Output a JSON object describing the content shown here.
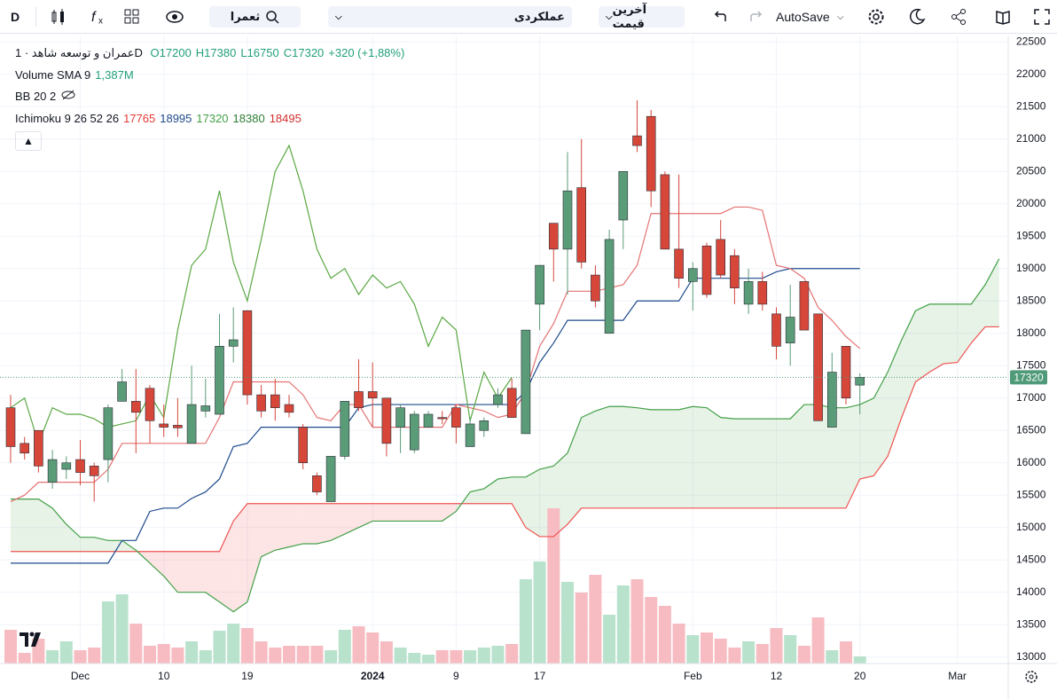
{
  "toolbar": {
    "interval": "D",
    "symbol_search": "ثعمرا",
    "indicators": "عملکردی",
    "price_type": "آخرین قیمت",
    "autosave": "AutoSave"
  },
  "chart_data": {
    "type": "candlestick",
    "title": "عمران و توسعه شاهد · 1D",
    "ohlc_text": [
      "O17200",
      "H17380",
      "L16750",
      "C17320",
      "+320 (+1,88%)"
    ],
    "ohlc_color": "#22a07a",
    "indicators": [
      {
        "name": "Volume SMA 9",
        "values": [
          "1,387M"
        ],
        "colors": [
          "#22a07a"
        ]
      },
      {
        "name": "BB 20 2",
        "values": [],
        "colors": []
      },
      {
        "name": "Ichimoku 9 26 52 26",
        "values": [
          "17765",
          "18995",
          "17320",
          "18380",
          "18495"
        ],
        "colors": [
          "#e53935",
          "#1e4a8c",
          "#43a047",
          "#2e7d32",
          "#d32f2f"
        ]
      }
    ],
    "up_color": "#5a9b78",
    "down_color": "#d6473a",
    "volume_up_color": "#b9e2cc",
    "volume_down_color": "#f7bcc2",
    "open": [
      16850,
      16300,
      16500,
      15700,
      15900,
      16050,
      15950,
      16050,
      16950,
      16950,
      17150,
      16600,
      16580,
      16300,
      16800,
      16750,
      17800,
      18350,
      17050,
      17050,
      16900,
      16550,
      15800,
      15400,
      16100,
      17100,
      17100,
      17000,
      16550,
      16200,
      16550,
      16700,
      16850,
      16250,
      16500,
      16900,
      17150,
      16450,
      18450,
      19700,
      19300,
      20250,
      18900,
      18000,
      19750,
      21050,
      21350,
      20450,
      19300,
      18800,
      19350,
      19450,
      19200,
      18450,
      18800,
      18300,
      17850,
      18800,
      18300,
      16550,
      17800,
      17200
    ],
    "high": [
      17050,
      16400,
      16500,
      16200,
      16100,
      16350,
      16000,
      16900,
      17450,
      17450,
      17200,
      16900,
      17000,
      17500,
      17300,
      18300,
      18400,
      18350,
      17200,
      17300,
      17050,
      16600,
      15850,
      16100,
      16950,
      17600,
      17550,
      17000,
      16900,
      16800,
      16800,
      16800,
      16900,
      16700,
      16700,
      17150,
      17300,
      18050,
      19050,
      19700,
      20800,
      21000,
      19050,
      19600,
      20500,
      21600,
      21450,
      20500,
      20450,
      19100,
      19400,
      19750,
      19300,
      19000,
      18950,
      18400,
      18750,
      18800,
      18300,
      17700,
      17800,
      17380
    ],
    "low": [
      16000,
      16050,
      15850,
      15600,
      15750,
      15650,
      15400,
      15700,
      16950,
      16150,
      16300,
      16400,
      16400,
      16300,
      16700,
      16750,
      17550,
      16900,
      16700,
      16650,
      16700,
      15900,
      15500,
      15400,
      16050,
      16800,
      16550,
      16100,
      16150,
      16150,
      16550,
      16600,
      16300,
      16250,
      16400,
      16850,
      16700,
      16450,
      18050,
      18800,
      18600,
      19000,
      18400,
      18000,
      19300,
      20800,
      19950,
      19300,
      18700,
      18350,
      18550,
      18850,
      18450,
      18300,
      18350,
      17600,
      17500,
      18050,
      16650,
      16550,
      16900,
      16750
    ],
    "close": [
      16250,
      16150,
      15950,
      16050,
      16000,
      15850,
      15800,
      16850,
      17250,
      16780,
      16650,
      16550,
      16540,
      16900,
      16880,
      17800,
      17900,
      17050,
      16800,
      16850,
      16780,
      16000,
      15550,
      16100,
      16950,
      16850,
      17000,
      16300,
      16850,
      16750,
      16750,
      16680,
      16550,
      16600,
      16650,
      17050,
      16700,
      18050,
      19050,
      19300,
      20200,
      19100,
      18500,
      19450,
      20500,
      20900,
      20200,
      19300,
      18850,
      19000,
      18600,
      18900,
      18700,
      18800,
      18450,
      17800,
      18250,
      18050,
      16650,
      17400,
      17000,
      17320
    ],
    "volume": [
      1.9,
      0.6,
      1.4,
      0.75,
      1.25,
      0.75,
      0.9,
      3.5,
      3.9,
      2.25,
      1.0,
      1.1,
      0.9,
      1.25,
      0.75,
      1.85,
      2.25,
      2.0,
      1.25,
      0.9,
      1.0,
      1.0,
      1.0,
      0.75,
      1.9,
      2.1,
      1.75,
      1.25,
      0.9,
      0.6,
      0.5,
      0.75,
      0.75,
      0.75,
      0.9,
      1.0,
      1.1,
      4.75,
      5.75,
      8.75,
      4.6,
      4.0,
      5.0,
      2.75,
      4.4,
      4.75,
      3.75,
      3.25,
      2.25,
      1.6,
      1.75,
      1.4,
      0.9,
      1.25,
      1.1,
      2.0,
      1.6,
      1.0,
      2.6,
      0.75,
      1.25,
      0.4
    ],
    "ichimoku": {
      "conversion": {
        "color": "#e57373",
        "values": [
          15400,
          15500,
          15700,
          15700,
          15700,
          15700,
          15700,
          15900,
          16300,
          16300,
          16300,
          16300,
          16300,
          16300,
          16300,
          16700,
          17250,
          17250,
          17250,
          17250,
          17250,
          17050,
          16700,
          16650,
          16900,
          16900,
          16550,
          16550,
          16550,
          16550,
          16550,
          16550,
          16900,
          16850,
          16800,
          16700,
          16750,
          17100,
          17800,
          18150,
          18650,
          18650,
          18650,
          18700,
          18750,
          19050,
          19850,
          19850,
          19850,
          19850,
          19850,
          19850,
          19950,
          19950,
          19900,
          19050,
          19000,
          18850,
          18400,
          18200,
          17950,
          17765
        ]
      },
      "base": {
        "color": "#1e4a8c",
        "values": [
          14450,
          14450,
          14450,
          14450,
          14450,
          14450,
          14450,
          14450,
          14800,
          14800,
          15250,
          15300,
          15300,
          15450,
          15550,
          15750,
          16250,
          16300,
          16550,
          16550,
          16550,
          16550,
          16550,
          16550,
          16550,
          16850,
          16900,
          16900,
          16900,
          16900,
          16900,
          16900,
          16900,
          16900,
          16900,
          16900,
          16900,
          17100,
          17550,
          17850,
          18200,
          18200,
          18200,
          18200,
          18200,
          18500,
          18500,
          18500,
          18500,
          18850,
          18850,
          18850,
          18850,
          18850,
          18850,
          18950,
          19000,
          19000,
          19000,
          19000,
          19000,
          19000
        ]
      },
      "lagging": {
        "color": "#5aa842",
        "values": [
          16850,
          17000,
          16300,
          16850,
          16750,
          16750,
          16680,
          16550,
          16600,
          16650,
          17050,
          16700,
          18050,
          19050,
          19300,
          20200,
          19100,
          18500,
          19450,
          20500,
          20900,
          20200,
          19300,
          18850,
          19000,
          18600,
          18900,
          18700,
          18800,
          18450,
          17800,
          18250,
          18050,
          16650,
          17400,
          17000,
          17320
        ]
      },
      "lead_a": {
        "color": "#43a047",
        "values": [
          15440,
          15440,
          15440,
          15300,
          15050,
          14850,
          14850,
          14800,
          14800,
          14650,
          14450,
          14250,
          14000,
          14000,
          14000,
          13850,
          13700,
          13850,
          14550,
          14650,
          14700,
          14750,
          14750,
          14800,
          14900,
          15000,
          15100,
          15100,
          15100,
          15100,
          15100,
          15100,
          15250,
          15550,
          15600,
          15750,
          15780,
          15780,
          15900,
          15950,
          16150,
          16700,
          16800,
          16870,
          16870,
          16850,
          16820,
          16820,
          16820,
          16870,
          16850,
          16700,
          16680,
          16680,
          16680,
          16680,
          16680,
          16900,
          16900,
          16850,
          16850,
          16900,
          17000,
          17400,
          17900,
          18350,
          18450,
          18450,
          18450,
          18450,
          18750,
          19150
        ]
      },
      "lead_b": {
        "color": "#ef5350",
        "values": [
          14630,
          14630,
          14630,
          14630,
          14630,
          14630,
          14630,
          14630,
          14630,
          14630,
          14630,
          14630,
          14630,
          14630,
          14630,
          14630,
          15100,
          15370,
          15370,
          15370,
          15370,
          15370,
          15370,
          15370,
          15370,
          15370,
          15370,
          15370,
          15370,
          15370,
          15370,
          15370,
          15370,
          15370,
          15370,
          15370,
          15370,
          15000,
          14860,
          14860,
          15050,
          15300,
          15300,
          15300,
          15300,
          15300,
          15300,
          15300,
          15300,
          15300,
          15300,
          15300,
          15300,
          15300,
          15300,
          15300,
          15300,
          15300,
          15300,
          15300,
          15300,
          15750,
          15800,
          16100,
          16700,
          17250,
          17400,
          17530,
          17550,
          17850,
          18100,
          18100
        ]
      },
      "cloud_up_color": "rgba(67,160,71,0.13)",
      "cloud_down_color": "rgba(239,83,80,0.15)"
    },
    "ylim": [
      12900,
      22600
    ],
    "yticks": [
      13000,
      13500,
      14000,
      14500,
      15000,
      15500,
      16000,
      16500,
      17000,
      17500,
      18000,
      18500,
      19000,
      19500,
      20000,
      20500,
      21000,
      21500,
      22000,
      22500
    ],
    "xticks": [
      {
        "value": 5,
        "label": "Dec"
      },
      {
        "value": 11,
        "label": "10"
      },
      {
        "value": 17,
        "label": "19"
      },
      {
        "value": 26,
        "label": "2024"
      },
      {
        "value": 32,
        "label": "9"
      },
      {
        "value": 38,
        "label": "17"
      },
      {
        "value": 49,
        "label": "Feb"
      },
      {
        "value": 55,
        "label": "12"
      },
      {
        "value": 61,
        "label": "20"
      },
      {
        "value": 68,
        "label": "Mar"
      }
    ],
    "grid": true,
    "last_price_color": "#4f9a78"
  }
}
